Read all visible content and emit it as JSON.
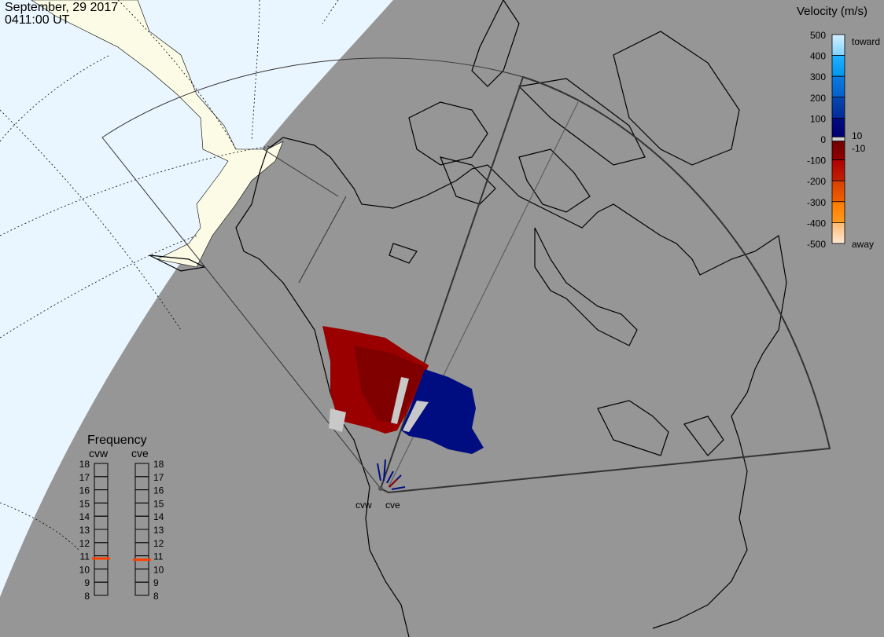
{
  "header": {
    "date": "September, 29 2017",
    "time": "0411:00 UT"
  },
  "colors": {
    "night": "#969696",
    "day_ocean": "#eaf6ff",
    "day_land": "#fbfbe6",
    "away": "#9a0000",
    "toward": "#000d80",
    "ground_scatter": "#c8c8c8"
  },
  "velocity_scale": {
    "title": "Velocity (m/s)",
    "ticks": [
      "500",
      "400",
      "300",
      "200",
      "100",
      "0",
      "-100",
      "-200",
      "-300",
      "-400",
      "-500"
    ],
    "toward_label": "toward",
    "away_label": "away",
    "inner_labels": [
      "10",
      "-10"
    ],
    "segments": [
      {
        "range": "500 to 400",
        "top": "#d4f0ff",
        "bottom": "#7fd2ff"
      },
      {
        "range": "400 to 300",
        "top": "#22b0ff",
        "bottom": "#0096ee"
      },
      {
        "range": "300 to 200",
        "top": "#0a7ae0",
        "bottom": "#0560c8"
      },
      {
        "range": "200 to 100",
        "top": "#0648b0",
        "bottom": "#042a98"
      },
      {
        "range": "100 to 10",
        "top": "#000c80",
        "bottom": "#000070"
      },
      {
        "range": "10 to -10",
        "top": "#d0d0d0",
        "bottom": "#d0d0d0"
      },
      {
        "range": "-10 to -100",
        "top": "#700000",
        "bottom": "#900000"
      },
      {
        "range": "-100 to -200",
        "top": "#b00000",
        "bottom": "#c02000"
      },
      {
        "range": "-200 to -300",
        "top": "#d84000",
        "bottom": "#f06000"
      },
      {
        "range": "-300 to -400",
        "top": "#ff7a00",
        "bottom": "#ff9a20"
      },
      {
        "range": "-400 to -500",
        "top": "#ffb870",
        "bottom": "#ffe8d4"
      }
    ]
  },
  "frequency": {
    "title": "Frequency",
    "unit_ticks": [
      "18",
      "17",
      "16",
      "15",
      "14",
      "13",
      "12",
      "11",
      "10",
      "9",
      "8"
    ],
    "radars": [
      {
        "name": "cvw",
        "value_mhz": 10.8
      },
      {
        "name": "cve",
        "value_mhz": 10.7
      }
    ],
    "marker_color": "#ff4000"
  },
  "map": {
    "radar_labels": [
      "cvw",
      "cve"
    ]
  }
}
